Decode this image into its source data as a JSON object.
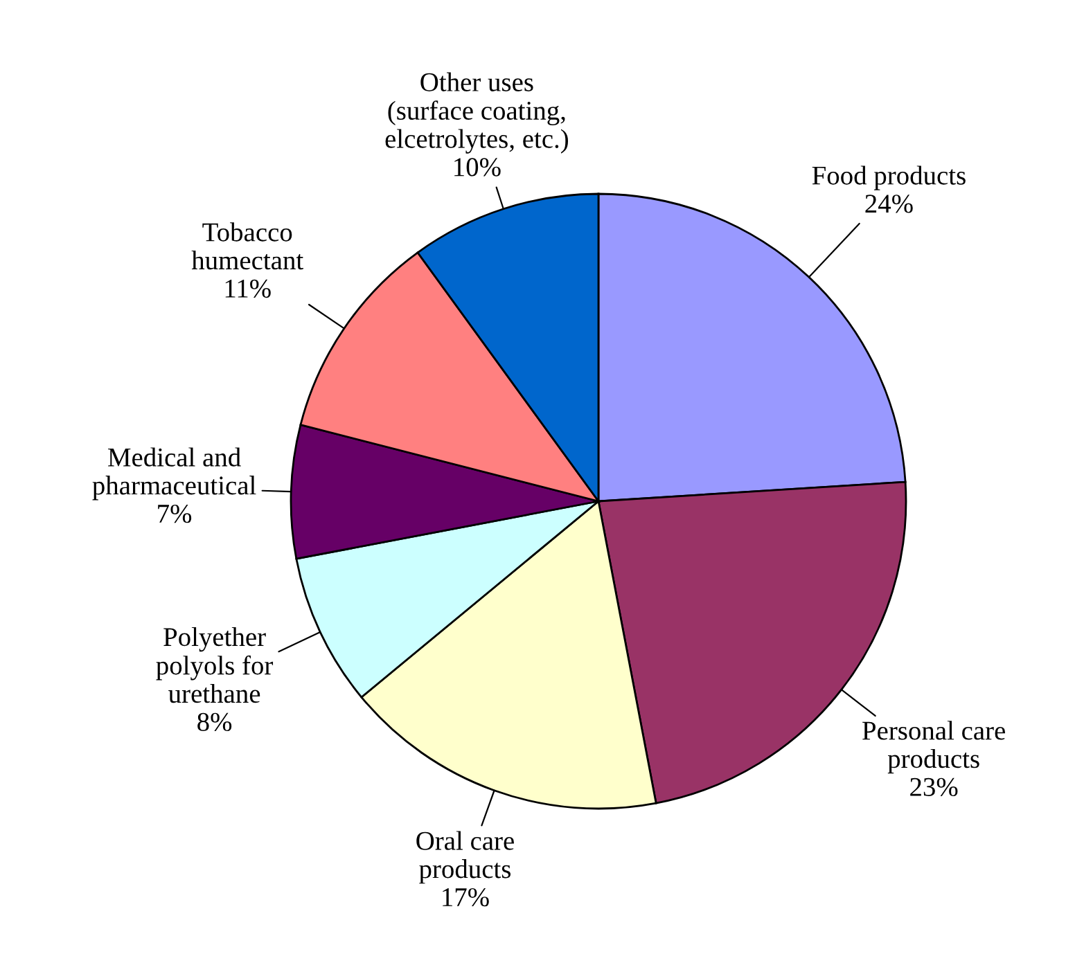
{
  "chart_data": {
    "type": "pie",
    "categories": [
      "Food products",
      "Personal care\nproducts",
      "Oral care\nproducts",
      "Polyether\npolyols for\nurethane",
      "Medical and\npharmaceutical",
      "Tobacco\nhumectant",
      "Other uses\n(surface coating,\nelcetrolytes, etc.)"
    ],
    "values": [
      24,
      23,
      17,
      8,
      7,
      11,
      10
    ],
    "value_labels": [
      "24%",
      "23%",
      "17%",
      "8%",
      "7%",
      "11%",
      "10%"
    ],
    "colors": [
      "#9999ff",
      "#993366",
      "#ffffcc",
      "#ccffff",
      "#660066",
      "#ff8080",
      "#0066cc"
    ]
  }
}
